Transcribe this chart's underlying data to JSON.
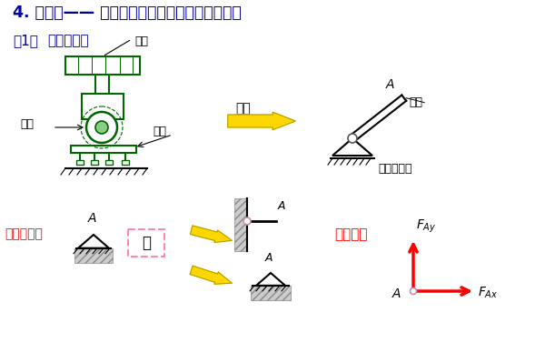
{
  "title1": "4. 铰支座—— 有固定铰支座和滚动铰支座两种。",
  "title2_1": "（1）",
  "title2_2": "固定铰支座",
  "label_gujian": "构件",
  "label_xiaoding": "销钉",
  "label_zhizuo": "支座",
  "label_jianhua": "简化",
  "label_gujian2": "构件",
  "label_gdjzz": "固定铰支座",
  "label_jisuanjiantu": "计算简图：",
  "label_huo": "或",
  "label_yuesuli": "约束力：",
  "label_A": "A",
  "label_FAy": "$F_{Ay}$",
  "label_FAx": "$F_{Ax}$",
  "bg_color": "#ffffff",
  "title1_color": "#000099",
  "title2_color": "#000099",
  "red_color": "#ff0000",
  "green_color": "#006600",
  "black_color": "#000000",
  "yellow_color": "#FFD700",
  "gray_color": "#bbbbbb",
  "pink_color": "#dd88aa"
}
